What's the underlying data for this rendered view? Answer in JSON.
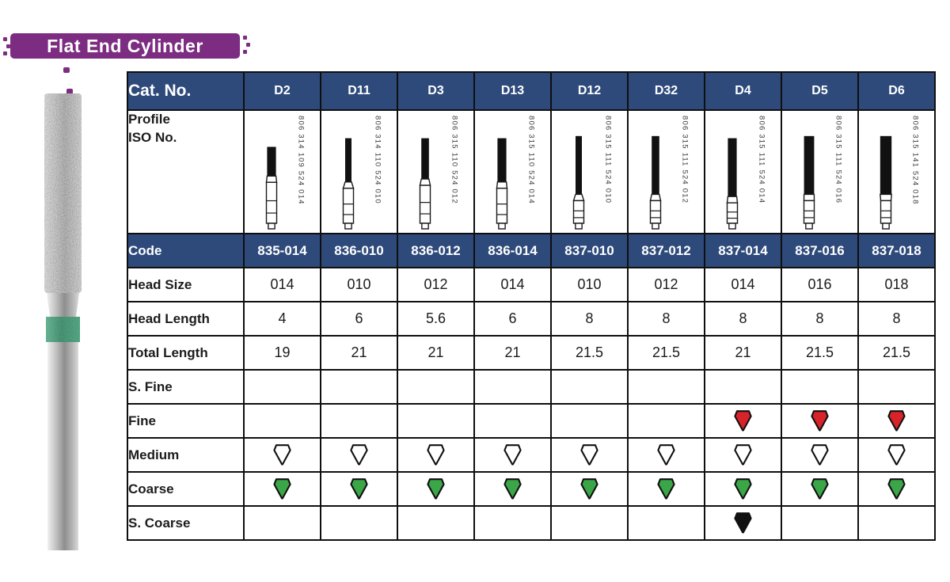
{
  "title": "Flat End Cylinder",
  "colors": {
    "purple": "#7c2c81",
    "header_blue": "#2e4a7b",
    "drop_white": "#ffffff",
    "drop_red": "#d8232a",
    "drop_green": "#3aa648",
    "drop_black": "#111111",
    "band_green": "#2f9a6c"
  },
  "table": {
    "cat_no_label": "Cat. No.",
    "profile_label_line1": "Profile",
    "profile_label_line2": "ISO No.",
    "code_label": "Code",
    "row_labels": {
      "head_size": "Head Size",
      "head_length": "Head Length",
      "total_length": "Total Length",
      "s_fine": "S. Fine",
      "fine": "Fine",
      "medium": "Medium",
      "coarse": "Coarse",
      "s_coarse": "S. Coarse"
    },
    "columns": [
      {
        "cat": "D2",
        "iso": "806 314 109 524 014",
        "code": "835-014",
        "head_size": "014",
        "head_length": "4",
        "total_length": "19",
        "grit": {
          "s_fine": "",
          "fine": "",
          "medium": "white",
          "coarse": "green",
          "s_coarse": ""
        }
      },
      {
        "cat": "D11",
        "iso": "806 314 110 524 010",
        "code": "836-010",
        "head_size": "010",
        "head_length": "6",
        "total_length": "21",
        "grit": {
          "s_fine": "",
          "fine": "",
          "medium": "white",
          "coarse": "green",
          "s_coarse": ""
        }
      },
      {
        "cat": "D3",
        "iso": "806 315 110 524 012",
        "code": "836-012",
        "head_size": "012",
        "head_length": "5.6",
        "total_length": "21",
        "grit": {
          "s_fine": "",
          "fine": "",
          "medium": "white",
          "coarse": "green",
          "s_coarse": ""
        }
      },
      {
        "cat": "D13",
        "iso": "806 315 110 524 014",
        "code": "836-014",
        "head_size": "014",
        "head_length": "6",
        "total_length": "21",
        "grit": {
          "s_fine": "",
          "fine": "",
          "medium": "white",
          "coarse": "green",
          "s_coarse": ""
        }
      },
      {
        "cat": "D12",
        "iso": "806 315 111 524 010",
        "code": "837-010",
        "head_size": "010",
        "head_length": "8",
        "total_length": "21.5",
        "grit": {
          "s_fine": "",
          "fine": "",
          "medium": "white",
          "coarse": "green",
          "s_coarse": ""
        }
      },
      {
        "cat": "D32",
        "iso": "806 315 111 524 012",
        "code": "837-012",
        "head_size": "012",
        "head_length": "8",
        "total_length": "21.5",
        "grit": {
          "s_fine": "",
          "fine": "",
          "medium": "white",
          "coarse": "green",
          "s_coarse": ""
        }
      },
      {
        "cat": "D4",
        "iso": "806 315 111 524 014",
        "code": "837-014",
        "head_size": "014",
        "head_length": "8",
        "total_length": "21",
        "grit": {
          "s_fine": "",
          "fine": "red",
          "medium": "white",
          "coarse": "green",
          "s_coarse": "black"
        }
      },
      {
        "cat": "D5",
        "iso": "806 315 111 524 016",
        "code": "837-016",
        "head_size": "016",
        "head_length": "8",
        "total_length": "21.5",
        "grit": {
          "s_fine": "",
          "fine": "red",
          "medium": "white",
          "coarse": "green",
          "s_coarse": ""
        }
      },
      {
        "cat": "D6",
        "iso": "806 315 141 524 018",
        "code": "837-018",
        "head_size": "018",
        "head_length": "8",
        "total_length": "21.5",
        "grit": {
          "s_fine": "",
          "fine": "red",
          "medium": "white",
          "coarse": "green",
          "s_coarse": ""
        }
      }
    ]
  }
}
